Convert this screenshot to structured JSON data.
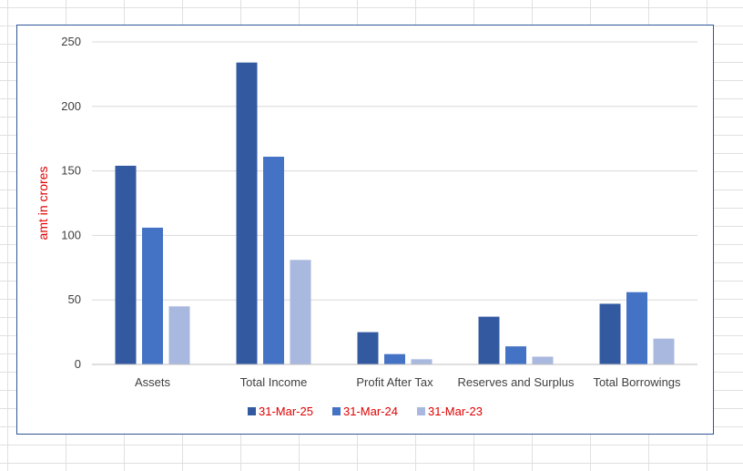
{
  "chart_data": {
    "type": "bar",
    "title": "",
    "xlabel": "",
    "ylabel": "amt in crores",
    "ylim": [
      0,
      250
    ],
    "yticks": [
      0,
      50,
      100,
      150,
      200,
      250
    ],
    "grid": true,
    "legend_position": "bottom",
    "categories": [
      "Assets",
      "Total Income",
      "Profit After Tax",
      "Reserves and Surplus",
      "Total Borrowings"
    ],
    "series": [
      {
        "name": "31-Mar-25",
        "color": "#335aa1",
        "values": [
          154,
          234,
          25,
          37,
          47
        ]
      },
      {
        "name": "31-Mar-24",
        "color": "#4472c4",
        "values": [
          106,
          161,
          8,
          14,
          56
        ]
      },
      {
        "name": "31-Mar-23",
        "color": "#a9b8df",
        "values": [
          45,
          81,
          4,
          6,
          20
        ]
      }
    ]
  }
}
